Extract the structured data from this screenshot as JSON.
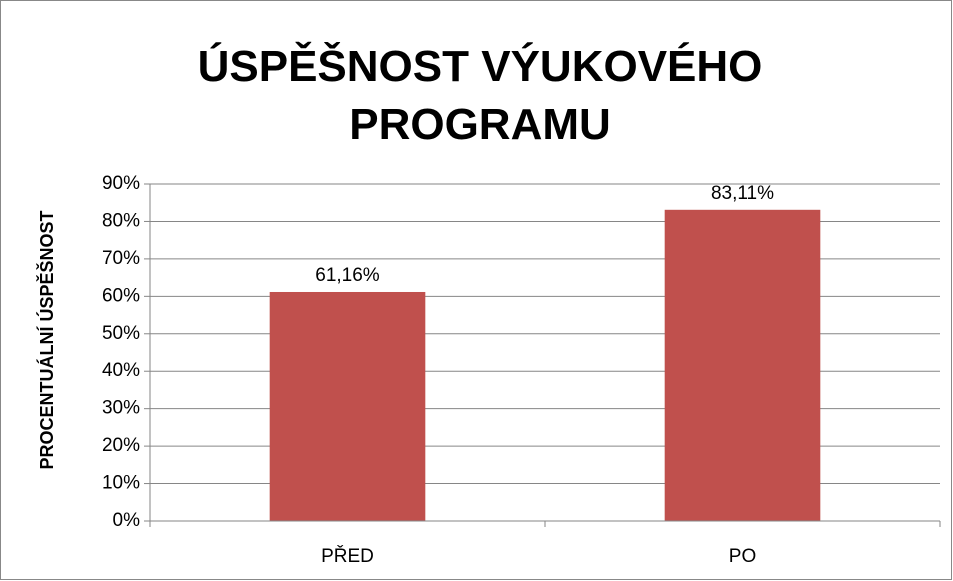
{
  "chart_data": {
    "type": "bar",
    "title": "ÚSPĚŠNOST VÝUKOVÉHO PROGRAMU",
    "y_label": "PROCENTUÁLNÍ ÚSPĚŠNOST",
    "categories": [
      "PŘED",
      "PO"
    ],
    "values": [
      61.16,
      83.11
    ],
    "value_labels": [
      "61,16%",
      "83,11%"
    ],
    "color": "#c0504d",
    "ylim": [
      0,
      90
    ],
    "yticks": [
      {
        "value": 0,
        "label": "0%"
      },
      {
        "value": 10,
        "label": "10%"
      },
      {
        "value": 20,
        "label": "20%"
      },
      {
        "value": 30,
        "label": "30%"
      },
      {
        "value": 40,
        "label": "40%"
      },
      {
        "value": 50,
        "label": "50%"
      },
      {
        "value": 60,
        "label": "60%"
      },
      {
        "value": 70,
        "label": "70%"
      },
      {
        "value": 80,
        "label": "80%"
      },
      {
        "value": 90,
        "label": "90%"
      }
    ],
    "grid": true
  }
}
